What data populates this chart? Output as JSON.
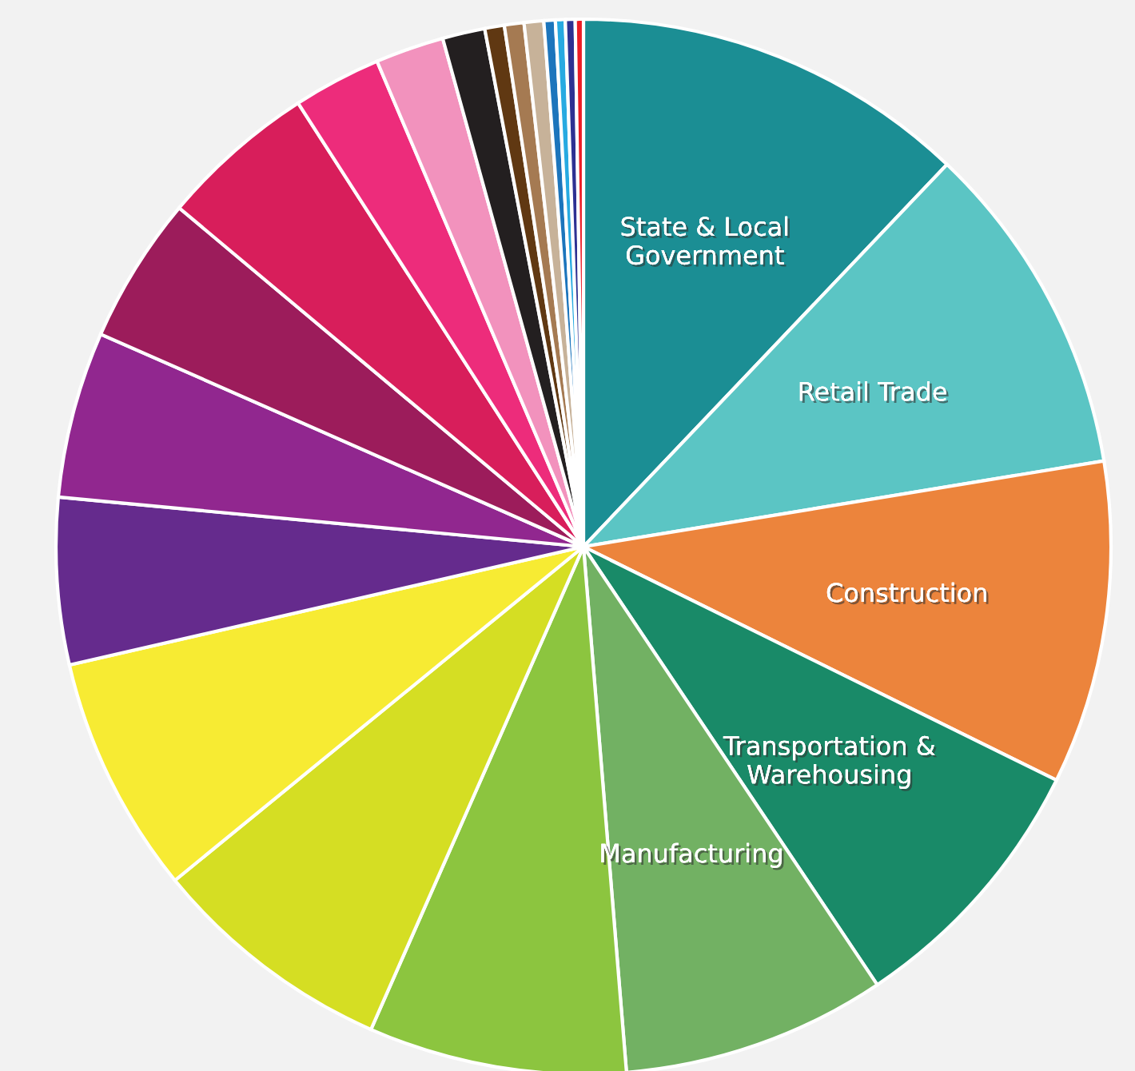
{
  "chart_data": {
    "type": "pie",
    "categories": [
      "State & Local\nGovernment",
      "Retail Trade",
      "Construction",
      "Transportation &\nWarehousing",
      "Manufacturing",
      null,
      null,
      null,
      null,
      null,
      null,
      null,
      null,
      null,
      null,
      null,
      null,
      null,
      null,
      null,
      null,
      null
    ],
    "values": [
      12.1,
      10.3,
      9.9,
      8.3,
      8.1,
      7.9,
      7.5,
      7.3,
      5.1,
      5.1,
      4.5,
      4.8,
      2.7,
      2.1,
      1.3,
      0.6,
      0.6,
      0.6,
      0.35,
      0.3,
      0.3,
      0.25
    ],
    "colors": [
      "#1b8e94",
      "#5bc5c4",
      "#ec843c",
      "#198a68",
      "#72b163",
      "#8cc53f",
      "#d5de23",
      "#f7eb33",
      "#652b8d",
      "#91278f",
      "#9c1c5b",
      "#d81e5b",
      "#ed2c7b",
      "#f292bd",
      "#231f20",
      "#603812",
      "#a57a52",
      "#c7b299",
      "#1c75bc",
      "#27aae1",
      "#2e3192",
      "#ed1c24"
    ]
  }
}
